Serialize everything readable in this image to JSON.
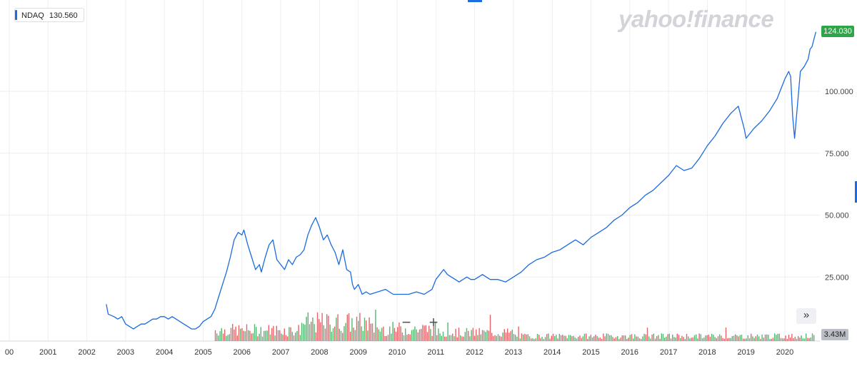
{
  "ticker": {
    "symbol": "NDAQ",
    "price": "130.560"
  },
  "logo": "yahoo!finance",
  "last_price_label": "124.030",
  "volume_label": "3.43M",
  "zoom": {
    "minus": "−",
    "plus": "+"
  },
  "expand": "»",
  "colors": {
    "line": "#1d6be0",
    "grid": "#eceef1",
    "up": "#3aa85a",
    "down": "#e0484f",
    "badge": "#2fa54a",
    "vol_badge": "#b9bec7"
  },
  "chart_data": {
    "type": "line",
    "series": [
      {
        "name": "NDAQ",
        "x": [
          2002.5,
          2002.55,
          2002.7,
          2002.8,
          2002.9,
          2003.0,
          2003.1,
          2003.2,
          2003.3,
          2003.4,
          2003.5,
          2003.6,
          2003.7,
          2003.8,
          2003.9,
          2004.0,
          2004.1,
          2004.2,
          2004.3,
          2004.4,
          2004.5,
          2004.6,
          2004.7,
          2004.8,
          2004.9,
          2005.0,
          2005.1,
          2005.2,
          2005.3,
          2005.4,
          2005.5,
          2005.6,
          2005.7,
          2005.8,
          2005.9,
          2006.0,
          2006.05,
          2006.15,
          2006.25,
          2006.35,
          2006.45,
          2006.5,
          2006.6,
          2006.7,
          2006.8,
          2006.9,
          2007.0,
          2007.1,
          2007.2,
          2007.3,
          2007.4,
          2007.5,
          2007.6,
          2007.7,
          2007.8,
          2007.9,
          2008.0,
          2008.1,
          2008.2,
          2008.3,
          2008.4,
          2008.5,
          2008.6,
          2008.7,
          2008.8,
          2008.85,
          2008.9,
          2009.0,
          2009.1,
          2009.2,
          2009.3,
          2009.5,
          2009.7,
          2009.9,
          2010.1,
          2010.3,
          2010.5,
          2010.7,
          2010.9,
          2011.0,
          2011.1,
          2011.2,
          2011.3,
          2011.4,
          2011.5,
          2011.6,
          2011.7,
          2011.8,
          2011.9,
          2012.0,
          2012.2,
          2012.4,
          2012.6,
          2012.8,
          2013.0,
          2013.2,
          2013.4,
          2013.6,
          2013.8,
          2014.0,
          2014.2,
          2014.4,
          2014.6,
          2014.8,
          2015.0,
          2015.2,
          2015.4,
          2015.6,
          2015.8,
          2016.0,
          2016.2,
          2016.4,
          2016.6,
          2016.8,
          2017.0,
          2017.2,
          2017.4,
          2017.6,
          2017.8,
          2018.0,
          2018.2,
          2018.4,
          2018.6,
          2018.8,
          2018.95,
          2019.0,
          2019.2,
          2019.4,
          2019.6,
          2019.8,
          2020.0,
          2020.1,
          2020.15,
          2020.2,
          2020.25,
          2020.3,
          2020.4,
          2020.5,
          2020.6,
          2020.65,
          2020.7,
          2020.8
        ],
        "values": [
          14,
          10,
          9,
          8,
          9,
          6,
          5,
          4,
          5,
          6,
          6,
          7,
          8,
          8,
          9,
          9,
          8,
          9,
          8,
          7,
          6,
          5,
          4,
          4,
          5,
          7,
          8,
          9,
          12,
          17,
          22,
          27,
          33,
          40,
          43,
          42,
          44,
          38,
          33,
          28,
          30,
          27,
          33,
          38,
          40,
          32,
          30,
          28,
          32,
          30,
          33,
          34,
          36,
          42,
          46,
          49,
          45,
          40,
          42,
          38,
          35,
          30,
          36,
          28,
          27,
          22,
          20,
          22,
          18,
          19,
          18,
          19,
          20,
          18,
          18,
          18,
          19,
          18,
          20,
          24,
          26,
          28,
          26,
          25,
          24,
          23,
          24,
          25,
          24,
          24,
          26,
          24,
          24,
          23,
          25,
          27,
          30,
          32,
          33,
          35,
          36,
          38,
          40,
          38,
          41,
          43,
          45,
          48,
          50,
          53,
          55,
          58,
          60,
          63,
          66,
          70,
          68,
          69,
          73,
          78,
          82,
          87,
          91,
          94,
          85,
          81,
          85,
          88,
          92,
          97,
          105,
          108,
          106,
          90,
          81,
          90,
          108,
          110,
          113,
          117,
          118,
          124
        ]
      }
    ],
    "volume": {
      "last": "3.43M"
    },
    "x_ticks": [
      "00",
      "2001",
      "2002",
      "2003",
      "2004",
      "2005",
      "2006",
      "2007",
      "2008",
      "2009",
      "2010",
      "2011",
      "2012",
      "2013",
      "2014",
      "2015",
      "2016",
      "2017",
      "2018",
      "2019",
      "2020"
    ],
    "y_ticks": [
      "25.000",
      "50.000",
      "75.000",
      "100.000"
    ],
    "ylim": [
      0,
      137
    ],
    "xlim": [
      2000,
      2020.8
    ],
    "grid": true,
    "legend": "top-left"
  }
}
